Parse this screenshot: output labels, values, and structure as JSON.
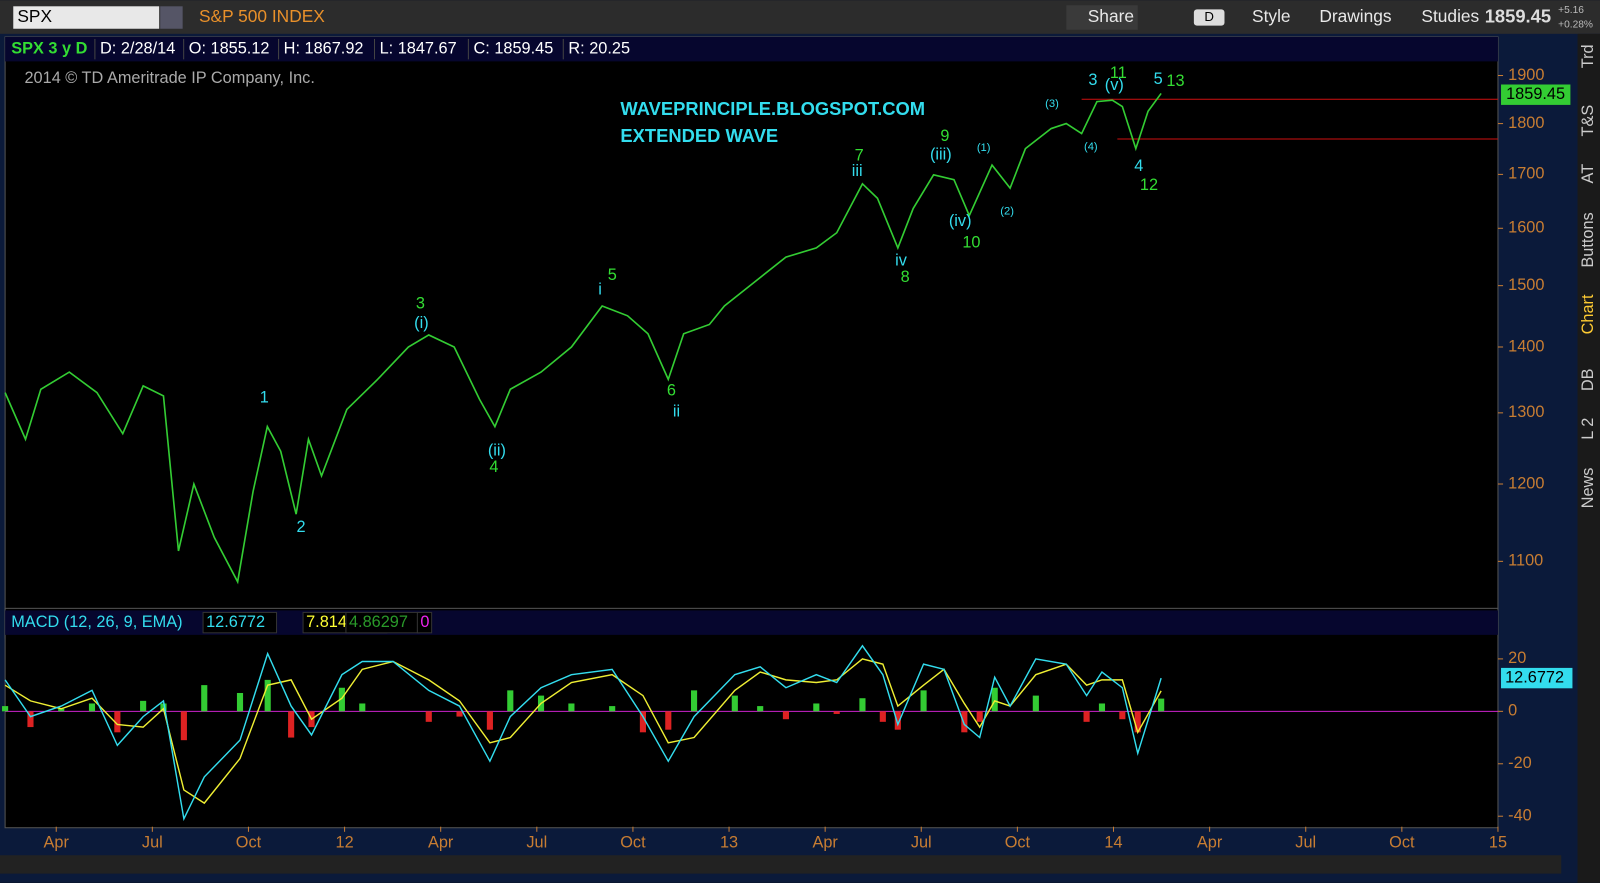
{
  "toolbar": {
    "symbol": "SPX",
    "description": "S&P 500 INDEX",
    "buttons": [
      "Share",
      "D",
      "Style",
      "Drawings",
      "Studies"
    ],
    "last": 1859.45,
    "change": "+5.16",
    "change_pct": "+0.28%"
  },
  "info_bar": [
    "SPX 3 y D",
    "D: 2/28/14",
    "O: 1855.12",
    "H: 1867.92",
    "L: 1847.67",
    "C: 1859.45",
    "R: 20.25"
  ],
  "copyright": "2014 © TD Ameritrade IP Company, Inc.",
  "sidebar_tabs": [
    "Trd",
    "T&S",
    "AT",
    "Buttons",
    "Chart",
    "DB",
    "L 2",
    "News"
  ],
  "chart_data": [
    {
      "type": "line",
      "log_scale": true,
      "color": "#33cc33",
      "x": [
        2011.117,
        2011.17,
        2011.21,
        2011.284,
        2011.356,
        2011.423,
        2011.476,
        2011.529,
        2011.568,
        2011.608,
        2011.661,
        2011.722,
        2011.762,
        2011.799,
        2011.834,
        2011.874,
        2011.906,
        2011.94,
        2012.006,
        2012.086,
        2012.166,
        2012.219,
        2012.285,
        2012.351,
        2012.391,
        2012.431,
        2012.511,
        2012.59,
        2012.67,
        2012.736,
        2012.789,
        2012.842,
        2012.882,
        2012.949,
        2012.988,
        2013.068,
        2013.148,
        2013.227,
        2013.28,
        2013.347,
        2013.386,
        2013.439,
        2013.479,
        2013.532,
        2013.585,
        2013.625,
        2013.684,
        2013.731,
        2013.771,
        2013.838,
        2013.877,
        2013.917,
        2013.957,
        2013.997,
        2014.023,
        2014.058,
        2014.09,
        2014.124
      ],
      "values": [
        1330,
        1262,
        1335,
        1361,
        1330,
        1270,
        1340,
        1325,
        1113,
        1200,
        1130,
        1075,
        1190,
        1280,
        1245,
        1160,
        1262,
        1211,
        1305,
        1350,
        1400,
        1419,
        1400,
        1320,
        1280,
        1335,
        1361,
        1400,
        1466,
        1450,
        1421,
        1350,
        1421,
        1436,
        1466,
        1507,
        1549,
        1565,
        1592,
        1682,
        1655,
        1565,
        1636,
        1699,
        1690,
        1623,
        1718,
        1674,
        1750,
        1790,
        1800,
        1780,
        1845,
        1848,
        1835,
        1750,
        1825,
        1862
      ],
      "xlim": [
        2011.117,
        2015.0
      ],
      "ylim": [
        1053,
        1926
      ],
      "yticks": [
        1100,
        1200,
        1300,
        1400,
        1500,
        1600,
        1700,
        1800,
        1900
      ],
      "hlines": [
        1850,
        1769
      ],
      "hline_color": "#d01010",
      "last_value": 1859.45,
      "last_value_color": "#33cc33",
      "notes": [
        "WAVEPRINCIPLE.BLOGSPOT.COM",
        "EXTENDED WAVE"
      ],
      "notes_color": "#33ddee",
      "annotations": [
        {
          "text": "1",
          "color": "#33ddee"
        },
        {
          "text": "2",
          "color": "#33ddee"
        },
        {
          "text": "(i)",
          "color": "#33ddee"
        },
        {
          "text": "(ii)",
          "color": "#33ddee"
        },
        {
          "text": "i",
          "color": "#33ddee"
        },
        {
          "text": "ii",
          "color": "#33ddee"
        },
        {
          "text": "iii",
          "color": "#33ddee"
        },
        {
          "text": "iv",
          "color": "#33ddee"
        },
        {
          "text": "(iii)",
          "color": "#33ddee"
        },
        {
          "text": "(iv)",
          "color": "#33ddee"
        },
        {
          "text": "(1)",
          "color": "#33ddee"
        },
        {
          "text": "(2)",
          "color": "#33ddee"
        },
        {
          "text": "(3)",
          "color": "#33ddee"
        },
        {
          "text": "(4)",
          "color": "#33ddee"
        },
        {
          "text": "3",
          "color": "#33ddee"
        },
        {
          "text": "(v)",
          "color": "#33ddee"
        },
        {
          "text": "5",
          "color": "#33ddee"
        },
        {
          "text": "4",
          "color": "#33ddee"
        },
        {
          "text": "3",
          "color": "#33dd33"
        },
        {
          "text": "4",
          "color": "#33dd33"
        },
        {
          "text": "5",
          "color": "#33dd33"
        },
        {
          "text": "6",
          "color": "#33dd33"
        },
        {
          "text": "7",
          "color": "#33dd33"
        },
        {
          "text": "8",
          "color": "#33dd33"
        },
        {
          "text": "9",
          "color": "#33dd33"
        },
        {
          "text": "10",
          "color": "#33dd33"
        },
        {
          "text": "11",
          "color": "#33dd33"
        },
        {
          "text": "12",
          "color": "#33dd33"
        },
        {
          "text": "13",
          "color": "#33dd33"
        }
      ]
    },
    {
      "type": "macd",
      "title": "MACD (12, 26, 9, EMA)",
      "readouts": [
        12.6772,
        7.81427,
        4.86297,
        0
      ],
      "readout_colors": [
        "#33ddee",
        "#ffff33",
        "#2a9a2a",
        "#ee22ee"
      ],
      "x": [
        2011.117,
        2011.183,
        2011.263,
        2011.343,
        2011.409,
        2011.476,
        2011.529,
        2011.582,
        2011.635,
        2011.728,
        2011.8,
        2011.861,
        2011.914,
        2011.993,
        2012.046,
        2012.126,
        2012.219,
        2012.299,
        2012.378,
        2012.431,
        2012.511,
        2012.59,
        2012.696,
        2012.776,
        2012.842,
        2012.909,
        2013.015,
        2013.081,
        2013.148,
        2013.227,
        2013.28,
        2013.347,
        2013.4,
        2013.439,
        2013.506,
        2013.559,
        2013.612,
        2013.652,
        2013.691,
        2013.731,
        2013.798,
        2013.877,
        2013.93,
        2013.97,
        2014.023,
        2014.063,
        2014.124
      ],
      "macd_values": [
        12,
        -2,
        2,
        8,
        -13,
        -2,
        4,
        -41,
        -25,
        -11,
        22,
        2,
        -9,
        14,
        19,
        19,
        8,
        2,
        -19,
        -2,
        9,
        14,
        16,
        -2,
        -19,
        -2,
        14,
        17,
        9,
        14,
        11,
        25,
        14,
        -5,
        18,
        16,
        -5,
        -10,
        13,
        2,
        20,
        18,
        6,
        15,
        9,
        -16,
        12.68
      ],
      "signal_values": [
        10,
        4,
        1,
        5,
        -5,
        -6,
        1,
        -30,
        -35,
        -18,
        10,
        12,
        -3,
        5,
        16,
        19,
        12,
        4,
        -12,
        -10,
        3,
        11,
        14,
        6,
        -12,
        -10,
        8,
        15,
        12,
        11,
        12,
        20,
        18,
        2,
        10,
        16,
        3,
        -6,
        4,
        2,
        14,
        18,
        10,
        12,
        12,
        -8,
        7.81
      ],
      "diff_values": [
        2,
        -6,
        1,
        3,
        -8,
        4,
        3,
        -11,
        10,
        7,
        12,
        -10,
        -6,
        9,
        3,
        0,
        -4,
        -2,
        -7,
        8,
        6,
        3,
        2,
        -8,
        -7,
        8,
        6,
        2,
        -3,
        3,
        -1,
        5,
        -4,
        -7,
        8,
        0,
        -8,
        -4,
        9,
        0,
        6,
        0,
        -4,
        3,
        -3,
        -8,
        4.86
      ],
      "macd_color": "#33ddee",
      "signal_color": "#eeee33",
      "positive_color": "#33cc33",
      "negative_color": "#dd2222",
      "zero_line_color": "#cc22cc",
      "last_value": 12.6772,
      "last_value_color": "#33ddee",
      "xlim": [
        2011.117,
        2015.0
      ],
      "ylim": [
        -44,
        28
      ],
      "yticks": [
        -40,
        -20,
        0,
        20
      ],
      "xticks": [
        {
          "value": 2011.25,
          "label": "Apr"
        },
        {
          "value": 2011.5,
          "label": "Jul"
        },
        {
          "value": 2011.75,
          "label": "Oct"
        },
        {
          "value": 2012,
          "label": "12"
        },
        {
          "value": 2012.25,
          "label": "Apr"
        },
        {
          "value": 2012.5,
          "label": "Jul"
        },
        {
          "value": 2012.75,
          "label": "Oct"
        },
        {
          "value": 2013,
          "label": "13"
        },
        {
          "value": 2013.25,
          "label": "Apr"
        },
        {
          "value": 2013.5,
          "label": "Jul"
        },
        {
          "value": 2013.75,
          "label": "Oct"
        },
        {
          "value": 2014,
          "label": "14"
        },
        {
          "value": 2014.25,
          "label": "Apr"
        },
        {
          "value": 2014.5,
          "label": "Jul"
        },
        {
          "value": 2014.75,
          "label": "Oct"
        },
        {
          "value": 2015,
          "label": "15"
        }
      ]
    }
  ]
}
